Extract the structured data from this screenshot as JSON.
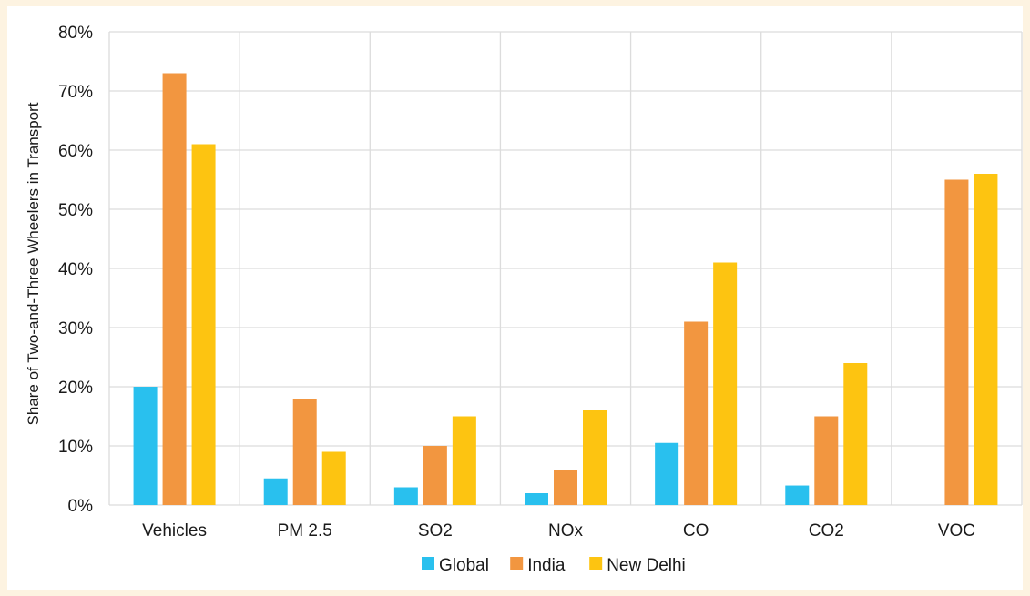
{
  "chart_data": {
    "type": "bar",
    "title": "",
    "xlabel": "",
    "ylabel": "Share of Two-and-Three Wheelers in Transport",
    "ylim": [
      0,
      80
    ],
    "yticks": [
      0,
      10,
      20,
      30,
      40,
      50,
      60,
      70,
      80
    ],
    "ytick_labels": [
      "0%",
      "10%",
      "20%",
      "30%",
      "40%",
      "50%",
      "60%",
      "70%",
      "80%"
    ],
    "categories": [
      "Vehicles",
      "PM 2.5",
      "SO2",
      "NOx",
      "CO",
      "CO2",
      "VOC"
    ],
    "series": [
      {
        "name": "Global",
        "color": "#29c0ee",
        "values": [
          20,
          4.5,
          3,
          2,
          10.5,
          3.3,
          null
        ]
      },
      {
        "name": "India",
        "color": "#f29640",
        "values": [
          73,
          18,
          10,
          6,
          31,
          15,
          55
        ]
      },
      {
        "name": "New Delhi",
        "color": "#fdc411",
        "values": [
          61,
          9,
          15,
          16,
          41,
          24,
          56
        ]
      }
    ],
    "grid": true,
    "legend": "bottom"
  }
}
